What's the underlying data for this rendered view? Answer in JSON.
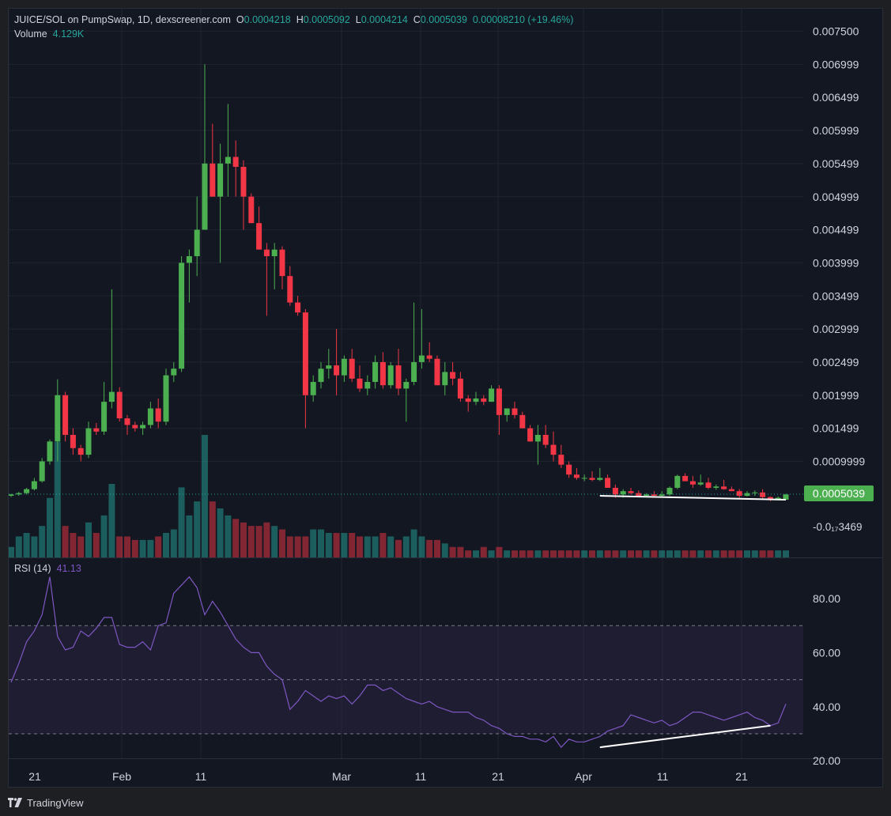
{
  "header": {
    "symbol": "JUICE/SOL on PumpSwap, 1D, dexscreener.com",
    "o_label": "O",
    "o_value": "0.0004218",
    "h_label": "H",
    "h_value": "0.0005092",
    "l_label": "L",
    "l_value": "0.0004214",
    "c_label": "C",
    "c_value": "0.0005039",
    "change": "0.00008210 (+19.46%)",
    "volume_label": "Volume",
    "volume_value": "4.129K"
  },
  "rsi_header": {
    "label": "RSI (14)",
    "value": "41.13"
  },
  "colors": {
    "up": "#26a69a",
    "up_candle": "#4caf50",
    "down": "#f23645",
    "rsi": "#7e57c2",
    "background": "#131722",
    "grid": "#1f2430"
  },
  "price_labels": [
    "0.007500",
    "0.006999",
    "0.006499",
    "0.005999",
    "0.005499",
    "0.004999",
    "0.004499",
    "0.003999",
    "0.003499",
    "0.002999",
    "0.002499",
    "0.001999",
    "0.001499",
    "0.0009999"
  ],
  "last_price_label": "0.0005039",
  "bottom_label": "-0.0₁₇3469",
  "rsi_labels": [
    "80.00",
    "60.00",
    "40.00",
    "20.00"
  ],
  "date_labels": [
    "21",
    "Feb",
    "11",
    "Mar",
    "11",
    "21",
    "Apr",
    "11",
    "21"
  ],
  "footer": {
    "brand": "TradingView"
  },
  "chart_data": [
    {
      "type": "candlestick",
      "title": "JUICE/SOL on PumpSwap, 1D, dexscreener.com",
      "x_start": "2025-01-18",
      "interval": "1D",
      "ylim": [
        -0.00015,
        0.0076
      ],
      "candles": [
        [
          0.00048,
          0.00051,
          0.00046,
          0.0005
        ],
        [
          0.0005,
          0.00054,
          0.00048,
          0.00052
        ],
        [
          0.00052,
          0.0006,
          0.0005,
          0.00058
        ],
        [
          0.00058,
          0.00075,
          0.00056,
          0.0007
        ],
        [
          0.0007,
          0.00105,
          0.00068,
          0.001
        ],
        [
          0.001,
          0.00133,
          0.00095,
          0.0013
        ],
        [
          0.0013,
          0.00224,
          0.001,
          0.002
        ],
        [
          0.002,
          0.00205,
          0.0013,
          0.0014
        ],
        [
          0.0014,
          0.0015,
          0.0011,
          0.0012
        ],
        [
          0.0012,
          0.00125,
          0.001,
          0.0011
        ],
        [
          0.0011,
          0.0016,
          0.00105,
          0.0015
        ],
        [
          0.0015,
          0.00158,
          0.0014,
          0.00145
        ],
        [
          0.00145,
          0.0022,
          0.0014,
          0.0019
        ],
        [
          0.0019,
          0.0036,
          0.0018,
          0.00205
        ],
        [
          0.00205,
          0.00212,
          0.0016,
          0.00165
        ],
        [
          0.00165,
          0.0017,
          0.0014,
          0.00155
        ],
        [
          0.00155,
          0.0016,
          0.00145,
          0.0015
        ],
        [
          0.0015,
          0.0016,
          0.0014,
          0.00155
        ],
        [
          0.00155,
          0.0019,
          0.0015,
          0.0018
        ],
        [
          0.0018,
          0.00195,
          0.0015,
          0.0016
        ],
        [
          0.0016,
          0.0024,
          0.00155,
          0.0023
        ],
        [
          0.0023,
          0.0025,
          0.0022,
          0.0024
        ],
        [
          0.0024,
          0.0041,
          0.00235,
          0.004
        ],
        [
          0.004,
          0.0042,
          0.0034,
          0.0041
        ],
        [
          0.0041,
          0.005,
          0.0038,
          0.0045
        ],
        [
          0.0045,
          0.007,
          0.0045,
          0.0055
        ],
        [
          0.0055,
          0.0061,
          0.005,
          0.005
        ],
        [
          0.005,
          0.0058,
          0.004,
          0.0055
        ],
        [
          0.0055,
          0.0064,
          0.005,
          0.0056
        ],
        [
          0.0056,
          0.00585,
          0.005,
          0.00545
        ],
        [
          0.00545,
          0.00555,
          0.0045,
          0.005
        ],
        [
          0.005,
          0.00505,
          0.0046,
          0.0046
        ],
        [
          0.0046,
          0.00485,
          0.0042,
          0.0042
        ],
        [
          0.0042,
          0.0043,
          0.0032,
          0.0041
        ],
        [
          0.0041,
          0.0043,
          0.0036,
          0.0042
        ],
        [
          0.0042,
          0.00425,
          0.0036,
          0.0038
        ],
        [
          0.0038,
          0.00395,
          0.00335,
          0.0034
        ],
        [
          0.0034,
          0.0035,
          0.0032,
          0.00325
        ],
        [
          0.00325,
          0.0033,
          0.0015,
          0.002
        ],
        [
          0.002,
          0.0023,
          0.0019,
          0.0022
        ],
        [
          0.0022,
          0.0025,
          0.0021,
          0.0024
        ],
        [
          0.0024,
          0.0027,
          0.00225,
          0.00245
        ],
        [
          0.00245,
          0.003,
          0.002,
          0.0023
        ],
        [
          0.0023,
          0.0026,
          0.0022,
          0.00255
        ],
        [
          0.00255,
          0.0027,
          0.0022,
          0.00225
        ],
        [
          0.00225,
          0.00245,
          0.00205,
          0.0021
        ],
        [
          0.0021,
          0.0023,
          0.002,
          0.0022
        ],
        [
          0.0022,
          0.0026,
          0.0021,
          0.0025
        ],
        [
          0.0025,
          0.00265,
          0.0021,
          0.00215
        ],
        [
          0.00215,
          0.0025,
          0.0021,
          0.00245
        ],
        [
          0.00245,
          0.0027,
          0.002,
          0.0021
        ],
        [
          0.0021,
          0.00225,
          0.0016,
          0.0022
        ],
        [
          0.0022,
          0.0034,
          0.00215,
          0.0025
        ],
        [
          0.0025,
          0.0033,
          0.0024,
          0.0026
        ],
        [
          0.0026,
          0.0028,
          0.0025,
          0.00255
        ],
        [
          0.00255,
          0.0026,
          0.00215,
          0.00215
        ],
        [
          0.00215,
          0.0025,
          0.002,
          0.00235
        ],
        [
          0.00235,
          0.0025,
          0.00215,
          0.00225
        ],
        [
          0.00225,
          0.00235,
          0.0019,
          0.00195
        ],
        [
          0.00195,
          0.002,
          0.00175,
          0.0019
        ],
        [
          0.0019,
          0.00205,
          0.00185,
          0.00195
        ],
        [
          0.00195,
          0.002,
          0.00185,
          0.0019
        ],
        [
          0.0019,
          0.00215,
          0.0019,
          0.0021
        ],
        [
          0.0021,
          0.00215,
          0.0014,
          0.0017
        ],
        [
          0.0017,
          0.0018,
          0.0016,
          0.0018
        ],
        [
          0.0018,
          0.0019,
          0.00165,
          0.0017
        ],
        [
          0.0017,
          0.00175,
          0.0015,
          0.0015
        ],
        [
          0.0015,
          0.00155,
          0.0013,
          0.0013
        ],
        [
          0.0013,
          0.00155,
          0.00095,
          0.0014
        ],
        [
          0.0014,
          0.00155,
          0.0012,
          0.00125
        ],
        [
          0.00125,
          0.00145,
          0.001,
          0.0011
        ],
        [
          0.0011,
          0.00125,
          0.0009,
          0.00095
        ],
        [
          0.00095,
          0.001,
          0.00075,
          0.0008
        ],
        [
          0.0008,
          0.0009,
          0.00072,
          0.00075
        ],
        [
          0.00075,
          0.0008,
          0.0007,
          0.00075
        ],
        [
          0.00075,
          0.00085,
          0.0007,
          0.00072
        ],
        [
          0.00072,
          0.0009,
          0.0007,
          0.00075
        ],
        [
          0.00075,
          0.0008,
          0.0006,
          0.0006
        ],
        [
          0.0006,
          0.00065,
          0.00045,
          0.0005
        ],
        [
          0.0005,
          0.00058,
          0.00045,
          0.00055
        ],
        [
          0.00055,
          0.0006,
          0.0005,
          0.00052
        ],
        [
          0.00052,
          0.00056,
          0.00047,
          0.00048
        ],
        [
          0.00048,
          0.00052,
          0.00046,
          0.0005
        ],
        [
          0.0005,
          0.00055,
          0.00046,
          0.00048
        ],
        [
          0.00048,
          0.00055,
          0.00046,
          0.0005
        ],
        [
          0.0005,
          0.00062,
          0.00048,
          0.0006
        ],
        [
          0.0006,
          0.0008,
          0.00058,
          0.00078
        ],
        [
          0.00078,
          0.00082,
          0.0007,
          0.0007
        ],
        [
          0.0007,
          0.00078,
          0.0006,
          0.00065
        ],
        [
          0.00065,
          0.0008,
          0.00063,
          0.00068
        ],
        [
          0.00068,
          0.00075,
          0.00058,
          0.0006
        ],
        [
          0.0006,
          0.00065,
          0.00057,
          0.00062
        ],
        [
          0.00062,
          0.00072,
          0.00057,
          0.00058
        ],
        [
          0.00058,
          0.00062,
          0.00055,
          0.00055
        ],
        [
          0.00055,
          0.00058,
          0.00045,
          0.00048
        ],
        [
          0.00048,
          0.00055,
          0.00047,
          0.00052
        ],
        [
          0.00052,
          0.00056,
          0.00048,
          0.00053
        ],
        [
          0.00053,
          0.00058,
          0.00044,
          0.00046
        ],
        [
          0.00046,
          0.00047,
          0.0004,
          0.00042
        ],
        [
          0.00042,
          0.00047,
          0.00041,
          0.00045
        ],
        [
          0.00042,
          0.00051,
          0.00042,
          0.0005
        ]
      ],
      "volume": [
        3,
        6,
        7,
        6,
        9,
        17,
        33,
        9,
        7,
        6,
        10,
        7,
        12,
        21,
        6,
        6,
        5,
        5,
        5,
        6,
        7,
        8,
        20,
        12,
        16,
        35,
        16,
        14,
        12,
        11,
        10,
        9,
        9,
        10,
        9,
        8,
        6,
        6,
        6,
        8,
        8,
        7,
        7,
        7,
        7,
        6,
        6,
        6,
        7,
        6,
        5,
        6,
        8,
        6,
        5,
        5,
        4,
        3,
        3,
        2,
        2,
        3,
        2,
        3,
        2,
        2,
        2,
        2,
        2,
        2,
        2,
        2,
        2,
        2,
        2,
        2,
        2,
        2,
        2,
        2,
        2,
        2,
        2,
        2,
        2,
        2,
        2,
        2,
        2,
        2,
        2,
        2,
        2,
        2,
        2,
        2,
        2,
        2,
        2,
        2,
        2
      ]
    },
    {
      "type": "line",
      "title": "RSI (14)",
      "ylim": [
        17,
        94
      ],
      "bands": [
        30,
        50,
        70
      ],
      "values": [
        49,
        56,
        64,
        68,
        74,
        88,
        66,
        61,
        62,
        68,
        66,
        69,
        73,
        73,
        63,
        62,
        62,
        64,
        61,
        70,
        71,
        82,
        85,
        88,
        84,
        74,
        79,
        75,
        70,
        65,
        62,
        60,
        60,
        55,
        52,
        50,
        39,
        42,
        46,
        44,
        42,
        44,
        43,
        44,
        41,
        44,
        48,
        48,
        46,
        47,
        45,
        43,
        42,
        41,
        42,
        40,
        39,
        38,
        38,
        38,
        36,
        35,
        33,
        32,
        30,
        29,
        29,
        28,
        28,
        27,
        29,
        25,
        28,
        27,
        27,
        28,
        29,
        31,
        32,
        33,
        37,
        36,
        35,
        34,
        35,
        33,
        34,
        36,
        38,
        38,
        37,
        36,
        35,
        36,
        37,
        38,
        36,
        35,
        33,
        34,
        41
      ],
      "trendlines": [
        {
          "panel": "price",
          "from": [
            76,
            0.00048
          ],
          "to": [
            100,
            0.00042
          ]
        },
        {
          "panel": "rsi",
          "from": [
            76,
            25
          ],
          "to": [
            98,
            33
          ]
        }
      ]
    }
  ]
}
